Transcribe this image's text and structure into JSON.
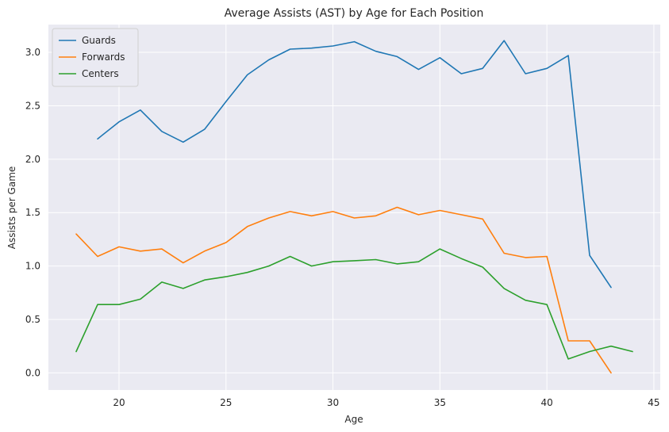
{
  "chart_data": {
    "type": "line",
    "title": "Average Assists (AST) by Age for Each Position",
    "xlabel": "Age",
    "ylabel": "Assists per Game",
    "xlim": [
      16.7,
      45.3
    ],
    "ylim": [
      -0.16,
      3.26
    ],
    "xticks": [
      20,
      25,
      30,
      35,
      40,
      45
    ],
    "yticks": [
      0.0,
      0.5,
      1.0,
      1.5,
      2.0,
      2.5,
      3.0
    ],
    "xtick_labels": [
      "20",
      "25",
      "30",
      "35",
      "40",
      "45"
    ],
    "ytick_labels": [
      "0.0",
      "0.5",
      "1.0",
      "1.5",
      "2.0",
      "2.5",
      "3.0"
    ],
    "grid": true,
    "legend_position": "top-left",
    "series": [
      {
        "name": "Guards",
        "color": "#1f77b4",
        "x": [
          19,
          20,
          21,
          22,
          23,
          24,
          25,
          26,
          27,
          28,
          29,
          30,
          31,
          32,
          33,
          34,
          35,
          36,
          37,
          38,
          39,
          40,
          41,
          42,
          43
        ],
        "y": [
          2.19,
          2.35,
          2.46,
          2.26,
          2.16,
          2.28,
          2.54,
          2.79,
          2.93,
          3.03,
          3.04,
          3.06,
          3.1,
          3.01,
          2.96,
          2.84,
          2.95,
          2.8,
          2.85,
          3.11,
          2.8,
          2.85,
          2.97,
          1.1,
          0.8
        ]
      },
      {
        "name": "Forwards",
        "color": "#ff7f0e",
        "x": [
          18,
          19,
          20,
          21,
          22,
          23,
          24,
          25,
          26,
          27,
          28,
          29,
          30,
          31,
          32,
          33,
          34,
          35,
          36,
          37,
          38,
          39,
          40,
          41,
          42,
          43
        ],
        "y": [
          1.3,
          1.09,
          1.18,
          1.14,
          1.16,
          1.03,
          1.14,
          1.22,
          1.37,
          1.45,
          1.51,
          1.47,
          1.51,
          1.45,
          1.47,
          1.55,
          1.48,
          1.52,
          1.48,
          1.44,
          1.12,
          1.08,
          1.09,
          0.3,
          0.3,
          0.0
        ]
      },
      {
        "name": "Centers",
        "color": "#2ca02c",
        "x": [
          18,
          19,
          20,
          21,
          22,
          23,
          24,
          25,
          26,
          27,
          28,
          29,
          30,
          31,
          32,
          33,
          34,
          35,
          36,
          37,
          38,
          39,
          40,
          41,
          42,
          43,
          44
        ],
        "y": [
          0.2,
          0.64,
          0.64,
          0.69,
          0.85,
          0.79,
          0.87,
          0.9,
          0.94,
          1.0,
          1.09,
          1.0,
          1.04,
          1.05,
          1.06,
          1.02,
          1.04,
          1.16,
          1.07,
          0.99,
          0.79,
          0.68,
          0.64,
          0.13,
          0.2,
          0.25,
          0.2
        ]
      }
    ]
  }
}
